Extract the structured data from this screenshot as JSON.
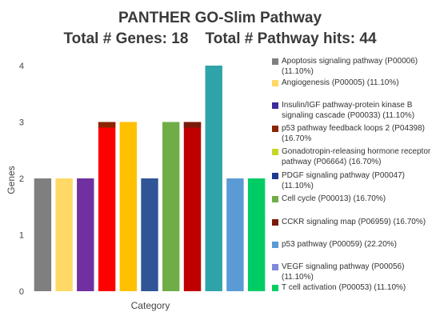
{
  "chart_data": {
    "type": "bar",
    "title_line1": "PANTHER GO-Slim Pathway",
    "title_line2": "Total # Genes: 18    Total # Pathway hits: 44",
    "xlabel": "Category",
    "ylabel": "Genes",
    "ylim": [
      0,
      4
    ],
    "yticks": [
      "0",
      "1",
      "2",
      "3",
      "4"
    ],
    "grid": false,
    "legend_position": "right",
    "series": [
      {
        "name": "Apoptosis signaling pathway (P00006) (11.10%)",
        "value": 2,
        "color": "#7f7f7f"
      },
      {
        "name": "Angiogenesis (P00005) (11.10%)",
        "value": 2,
        "color": "#ffd966"
      },
      {
        "name": "Insulin/IGF pathway-protein kinase B signaling cascade (P00033) (11.10%)",
        "value": 2,
        "color": "#7030a0"
      },
      {
        "name": "p53 pathway feedback loops 2 (P04398) (16.70%",
        "value": 3,
        "color": "#ff0000"
      },
      {
        "name": "Gonadotropin-releasing hormone receptor pathway (P06664) (16.70%)",
        "value": 3,
        "color": "#ffc000"
      },
      {
        "name": "PDGF signaling pathway (P00047) (11.10%)",
        "value": 2,
        "color": "#2f5597"
      },
      {
        "name": "Cell cycle (P00013) (16.70%)",
        "value": 3,
        "color": "#70ad47"
      },
      {
        "name": "CCKR signaling map (P06959) (16.70%)",
        "value": 3,
        "color": "#c00000"
      },
      {
        "name": "p53 pathway (P00059) (22.20%)",
        "value": 4,
        "color": "#2fa4a8"
      },
      {
        "name": "VEGF signaling pathway (P00056) (11.10%)",
        "value": 2,
        "color": "#5b9bd5"
      },
      {
        "name": "T cell activation (P00053) (11.10%)",
        "value": 2,
        "color": "#00cc66"
      }
    ],
    "legend_colors": [
      "#7f7f7f",
      "#ffd966",
      "#3d2b99",
      "#8b2500",
      "#c5d82a",
      "#1f3a8a",
      "#70ad47",
      "#7a1a0a",
      "#5b9bd5",
      "#7f88d9",
      "#00cc66"
    ],
    "bar_top_caps": {
      "p53 pathway feedback loops 2 (P04398) (16.70%": "#8b2500",
      "CCKR signaling map (P06959) (16.70%)": "#7a1a0a"
    }
  }
}
